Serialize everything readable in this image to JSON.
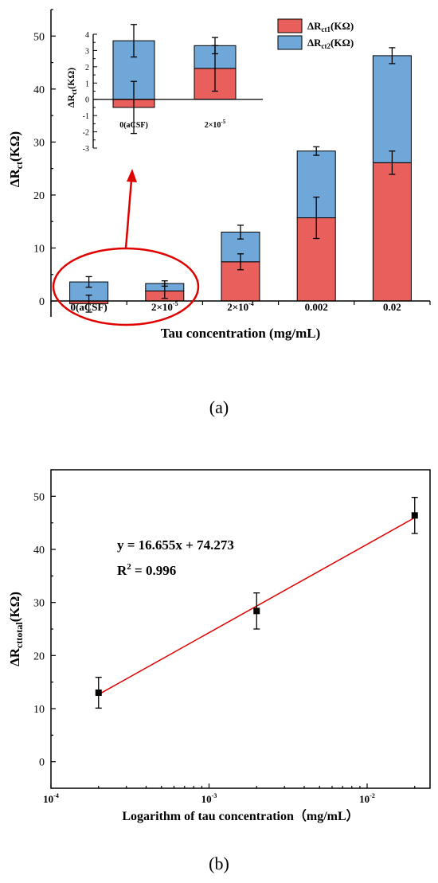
{
  "colors": {
    "series1": "#e85f5c",
    "series2": "#6ea7d8",
    "axis": "#000000",
    "fit_line": "#e00000",
    "annotation": "#e00000"
  },
  "chart_data": [
    {
      "id": "a",
      "type": "bar",
      "stacked": true,
      "caption": "(a)",
      "xlabel": "Tau concentration (mg/mL)",
      "ylabel_base": "ΔR",
      "ylabel_sub": "ct",
      "ylabel_unit": "(KΩ)",
      "categories": [
        "0(aCSF)",
        "2×10",
        "2×10",
        "0.002",
        "0.02"
      ],
      "category_exponents": [
        "",
        "-5",
        "-4",
        "",
        ""
      ],
      "ylim": [
        -3,
        55
      ],
      "yticks": [
        0,
        10,
        20,
        30,
        40,
        50
      ],
      "grid": false,
      "legend_position": "top-right",
      "series": [
        {
          "legend_base": "ΔR",
          "legend_sub": "ct1",
          "legend_unit": "(KΩ)",
          "values": [
            -0.5,
            1.9,
            7.4,
            15.7,
            26.1
          ],
          "errors": [
            1.6,
            1.4,
            1.5,
            3.9,
            2.2
          ]
        },
        {
          "legend_base": "ΔR",
          "legend_sub": "ct2",
          "legend_unit": "(KΩ)",
          "values": [
            3.6,
            1.4,
            5.6,
            12.6,
            20.2
          ],
          "errors": [
            1.0,
            0.5,
            1.3,
            0.8,
            1.5
          ]
        }
      ],
      "inset": {
        "categories": [
          "0(aCSF)",
          "2×10"
        ],
        "category_exponents": [
          "",
          "-5"
        ],
        "ylabel_base": "ΔR",
        "ylabel_sub": "ct",
        "ylabel_unit": "(KΩ)",
        "ylim": [
          -3,
          4
        ],
        "yticks": [
          -3,
          -2,
          -1,
          0,
          1,
          2,
          3,
          4
        ]
      }
    },
    {
      "id": "b",
      "type": "scatter",
      "caption": "(b)",
      "xlabel": "Logarithm of tau concentration（mg/mL）",
      "ylabel_base": "ΔR",
      "ylabel_sub": "cttotal",
      "ylabel_unit": "(KΩ)",
      "x_scale": "log",
      "xlim": [
        0.0001,
        0.025
      ],
      "xticks": [
        {
          "value": 0.0001,
          "base": "10",
          "exp": "-4"
        },
        {
          "value": 0.001,
          "base": "10",
          "exp": "-3"
        },
        {
          "value": 0.01,
          "base": "10",
          "exp": "-2"
        }
      ],
      "ylim": [
        -5,
        55
      ],
      "yticks": [
        0,
        10,
        20,
        30,
        40,
        50
      ],
      "grid": false,
      "points": [
        {
          "x": 0.0002,
          "y": 13.0,
          "err": 2.9
        },
        {
          "x": 0.002,
          "y": 28.4,
          "err": 3.4
        },
        {
          "x": 0.02,
          "y": 46.4,
          "err": 3.4
        }
      ],
      "fit": {
        "slope": 16.655,
        "intercept": 74.273
      },
      "equation_text": "y = 16.655x + 74.273",
      "r2_label": "R",
      "r2_exp": "2",
      "r2_value_text": " = 0.996"
    }
  ]
}
